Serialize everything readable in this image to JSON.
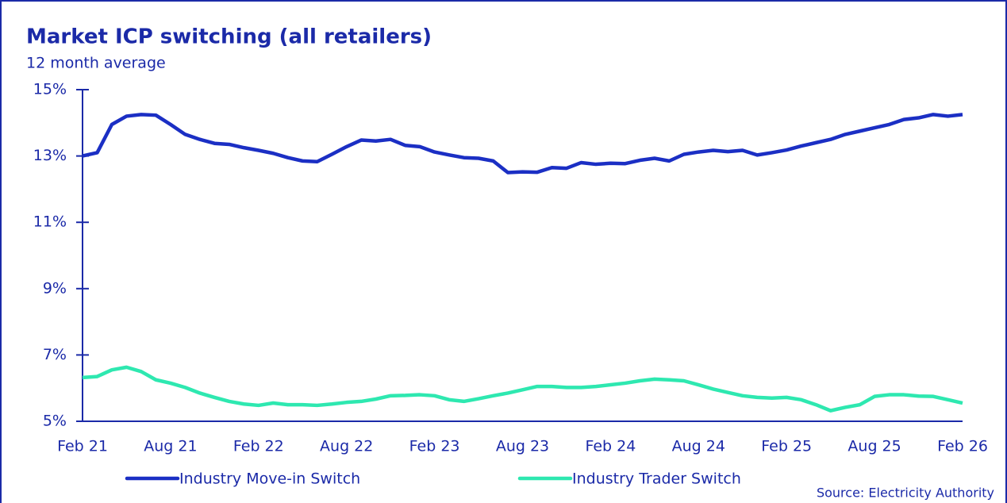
{
  "chart_data": {
    "type": "line",
    "title": "Market ICP switching (all retailers)",
    "subtitle": "12 month average",
    "source": "Source: Electricity Authority",
    "categories": [
      "Feb 21",
      null,
      null,
      null,
      null,
      null,
      "Aug 21",
      null,
      null,
      null,
      null,
      null,
      "Feb 22",
      null,
      null,
      null,
      null,
      null,
      "Aug 22",
      null,
      null,
      null,
      null,
      null,
      "Feb 23",
      null,
      null,
      null,
      null,
      null,
      "Aug 23",
      null,
      null,
      null,
      null,
      null,
      "Feb 24",
      null,
      null,
      null,
      null,
      null,
      "Aug 24",
      null,
      null,
      null,
      null,
      null,
      "Feb 25",
      null,
      null,
      null,
      null,
      null,
      "Aug 25",
      null,
      null,
      null,
      null,
      null,
      "Feb 26"
    ],
    "series": [
      {
        "name": "Industry Move-in Switch",
        "color": "#1b2fc4",
        "values": [
          13.0,
          13.1,
          13.95,
          14.2,
          14.25,
          14.23,
          13.95,
          13.65,
          13.5,
          13.38,
          13.35,
          13.25,
          13.17,
          13.08,
          12.95,
          12.85,
          12.83,
          13.05,
          13.28,
          13.48,
          13.45,
          13.5,
          13.32,
          13.28,
          13.12,
          13.03,
          12.95,
          12.93,
          12.85,
          12.5,
          12.52,
          12.51,
          12.65,
          12.63,
          12.8,
          12.75,
          12.78,
          12.77,
          12.87,
          12.93,
          12.85,
          13.05,
          13.12,
          13.17,
          13.13,
          13.17,
          13.03,
          13.1,
          13.18,
          13.3,
          13.4,
          13.5,
          13.65,
          13.75,
          13.85,
          13.95,
          14.1,
          14.15,
          14.25,
          14.2,
          14.25
        ]
      },
      {
        "name": "Industry Trader Switch",
        "color": "#2ee8b0",
        "values": [
          6.32,
          6.35,
          6.55,
          6.63,
          6.5,
          6.25,
          6.15,
          6.02,
          5.85,
          5.72,
          5.6,
          5.52,
          5.48,
          5.55,
          5.5,
          5.5,
          5.48,
          5.52,
          5.57,
          5.6,
          5.67,
          5.77,
          5.78,
          5.8,
          5.77,
          5.65,
          5.6,
          5.68,
          5.77,
          5.85,
          5.95,
          6.05,
          6.05,
          6.02,
          6.02,
          6.05,
          6.1,
          6.15,
          6.22,
          6.27,
          6.25,
          6.22,
          6.1,
          5.97,
          5.87,
          5.77,
          5.72,
          5.7,
          5.72,
          5.65,
          5.5,
          5.32,
          5.42,
          5.5,
          5.75,
          5.8,
          5.8,
          5.76,
          5.75,
          5.65,
          5.55
        ]
      }
    ],
    "ylim": [
      5,
      15
    ],
    "yticks": [
      {
        "value": 5,
        "label": "5%"
      },
      {
        "value": 7,
        "label": "7%"
      },
      {
        "value": 9,
        "label": "9%"
      },
      {
        "value": 11,
        "label": "11%"
      },
      {
        "value": 13,
        "label": "13%"
      },
      {
        "value": 15,
        "label": "15%"
      }
    ],
    "legend": "bottom"
  }
}
